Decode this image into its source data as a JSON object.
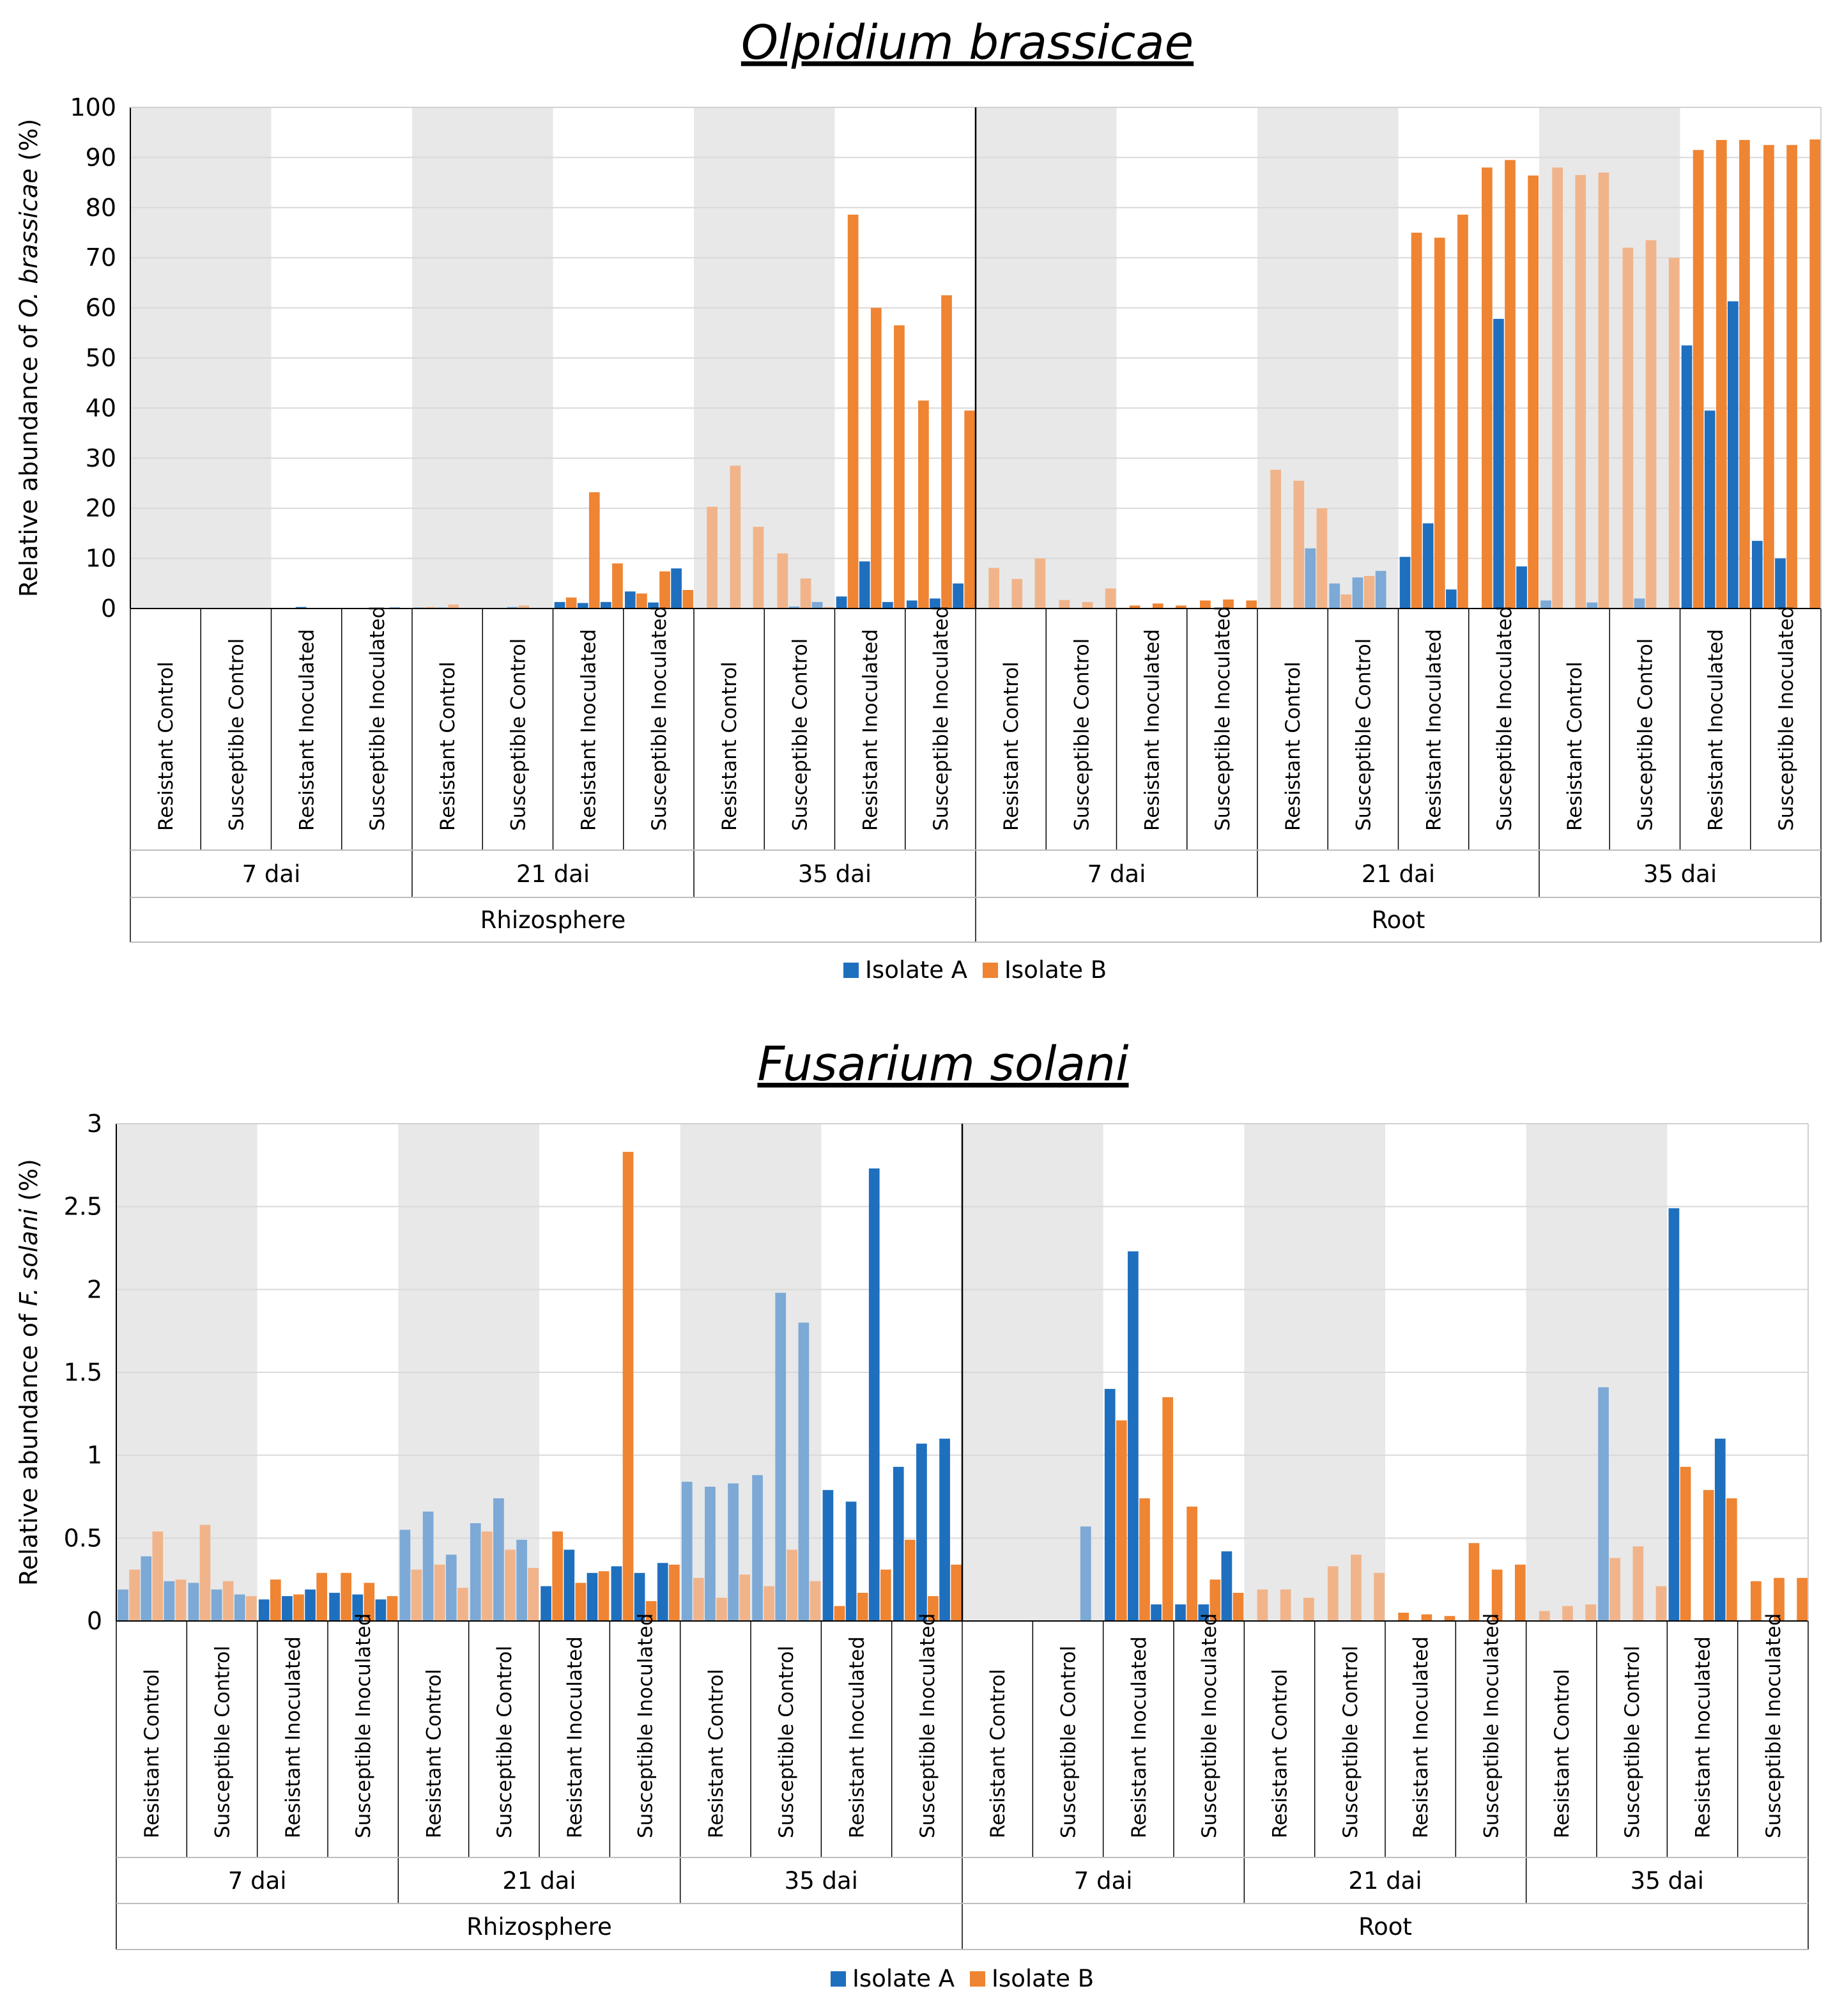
{
  "colors": {
    "isolate_a": "#1f6fbf",
    "isolate_b": "#ef8433",
    "isolate_a_control": "#7ca9d6",
    "isolate_b_control": "#f1b48a",
    "shade": "#e8e8e8",
    "grid": "#d9d9d9"
  },
  "chart_data": [
    {
      "type": "bar",
      "title": "Olpidium brassicae",
      "ylabel": "Relative abundance of O. brassicae (%)",
      "ylabel_parts": {
        "before": "Relative abundance of ",
        "italic": "O. brassicae",
        "after": " (%)"
      },
      "ylim": [
        0,
        100
      ],
      "yticks": [
        "0",
        "10",
        "20",
        "30",
        "40",
        "50",
        "60",
        "70",
        "80",
        "90",
        "100"
      ],
      "compartments": [
        "Rhizosphere",
        "Root"
      ],
      "timepoints": [
        "7 dai",
        "21 dai",
        "35 dai"
      ],
      "treatments": [
        "Resistant Control",
        "Susceptible Control",
        "Resistant Inoculated",
        "Susceptible Inoculated"
      ],
      "legend": [
        "Isolate A",
        "Isolate B"
      ],
      "values": [
        [
          [
            0,
            0,
            0,
            0,
            0,
            0
          ],
          [
            0,
            0,
            0,
            0,
            0,
            0
          ],
          [
            0,
            0,
            0.3,
            0,
            0,
            0
          ],
          [
            0,
            0,
            0,
            0,
            0.2,
            0
          ]
        ],
        [
          [
            0.2,
            0.3,
            0.2,
            0.8,
            0,
            0
          ],
          [
            0,
            0,
            0.3,
            0.6,
            0,
            0
          ],
          [
            1.3,
            2.2,
            1.1,
            23.2,
            1.3,
            9.0
          ],
          [
            3.4,
            3.0,
            1.2,
            7.4,
            8.0,
            3.7
          ]
        ],
        [
          [
            0,
            20.3,
            0,
            28.5,
            0,
            16.3
          ],
          [
            0,
            11.0,
            0.4,
            6.0,
            1.3,
            0.3
          ],
          [
            2.4,
            78.6,
            9.4,
            60.0,
            1.3,
            56.5
          ],
          [
            1.6,
            41.5,
            2.0,
            62.5,
            5.0,
            39.5
          ]
        ],
        [
          [
            0,
            8.1,
            0,
            5.9,
            0,
            10.0
          ],
          [
            0,
            1.7,
            0,
            1.3,
            0,
            4.0
          ],
          [
            0,
            0.6,
            0,
            1.0,
            0,
            0.6
          ],
          [
            0,
            1.6,
            0,
            1.8,
            0,
            1.6
          ]
        ],
        [
          [
            0,
            27.7,
            0,
            25.5,
            12.0,
            20.0
          ],
          [
            5.0,
            2.8,
            6.2,
            6.5,
            7.5,
            0
          ],
          [
            10.3,
            75.0,
            17.0,
            74.0,
            3.8,
            78.6
          ],
          [
            0,
            88.0,
            57.8,
            89.5,
            8.4,
            86.4
          ]
        ],
        [
          [
            1.6,
            88.0,
            0,
            86.5,
            1.2,
            87.0
          ],
          [
            0,
            72.0,
            2.0,
            73.5,
            0,
            70.0
          ],
          [
            52.5,
            91.5,
            39.5,
            93.5,
            61.3,
            93.5
          ],
          [
            13.5,
            92.5,
            10.0,
            92.5,
            0,
            93.6
          ]
        ]
      ]
    },
    {
      "type": "bar",
      "title": "Fusarium solani",
      "ylabel": "Relative abundance of F. solani (%)",
      "ylabel_parts": {
        "before": "Relative abundance of ",
        "italic": "F. solani",
        "after": " (%)"
      },
      "ylim": [
        0,
        3
      ],
      "yticks": [
        "0",
        "0.5",
        "1",
        "1.5",
        "2",
        "2.5",
        "3"
      ],
      "compartments": [
        "Rhizosphere",
        "Root"
      ],
      "timepoints": [
        "7 dai",
        "21 dai",
        "35 dai"
      ],
      "treatments": [
        "Resistant Control",
        "Susceptible Control",
        "Resistant Inoculated",
        "Susceptible Inoculated"
      ],
      "legend": [
        "Isolate A",
        "Isolate B"
      ],
      "values": [
        [
          [
            0.19,
            0.31,
            0.39,
            0.54,
            0.24,
            0.25
          ],
          [
            0.23,
            0.58,
            0.19,
            0.24,
            0.16,
            0.15
          ],
          [
            0.13,
            0.25,
            0.15,
            0.16,
            0.19,
            0.29
          ],
          [
            0.17,
            0.29,
            0.16,
            0.23,
            0.13,
            0.15
          ]
        ],
        [
          [
            0.55,
            0.31,
            0.66,
            0.34,
            0.4,
            0.2
          ],
          [
            0.59,
            0.54,
            0.74,
            0.43,
            0.49,
            0.32
          ],
          [
            0.21,
            0.54,
            0.43,
            0.23,
            0.29,
            0.3
          ],
          [
            0.33,
            2.83,
            0.29,
            0.12,
            0.35,
            0.34
          ]
        ],
        [
          [
            0.84,
            0.26,
            0.81,
            0.14,
            0.83,
            0.28
          ],
          [
            0.88,
            0.21,
            1.98,
            0.43,
            1.8,
            0.24
          ],
          [
            0.79,
            0.09,
            0.72,
            0.17,
            2.73,
            0.31
          ],
          [
            0.93,
            0.49,
            1.07,
            0.15,
            1.1,
            0.34
          ]
        ],
        [
          [
            0,
            0,
            0,
            0,
            0,
            0
          ],
          [
            0,
            0,
            0,
            0,
            0.57,
            0
          ],
          [
            1.4,
            1.21,
            2.23,
            0.74,
            0.1,
            1.35
          ],
          [
            0.1,
            0.69,
            0.1,
            0.25,
            0.42,
            0.17
          ]
        ],
        [
          [
            0,
            0.19,
            0,
            0.19,
            0,
            0.14
          ],
          [
            0,
            0.33,
            0,
            0.4,
            0,
            0.29
          ],
          [
            0,
            0.05,
            0,
            0.04,
            0,
            0.03
          ],
          [
            0,
            0.47,
            0,
            0.31,
            0,
            0.34
          ]
        ],
        [
          [
            0,
            0.06,
            0,
            0.09,
            0,
            0.1
          ],
          [
            1.41,
            0.38,
            0,
            0.45,
            0,
            0.21
          ],
          [
            2.49,
            0.93,
            0,
            0.79,
            1.1,
            0.74
          ],
          [
            0,
            0.24,
            0,
            0.26,
            0,
            0.26
          ]
        ]
      ]
    }
  ]
}
